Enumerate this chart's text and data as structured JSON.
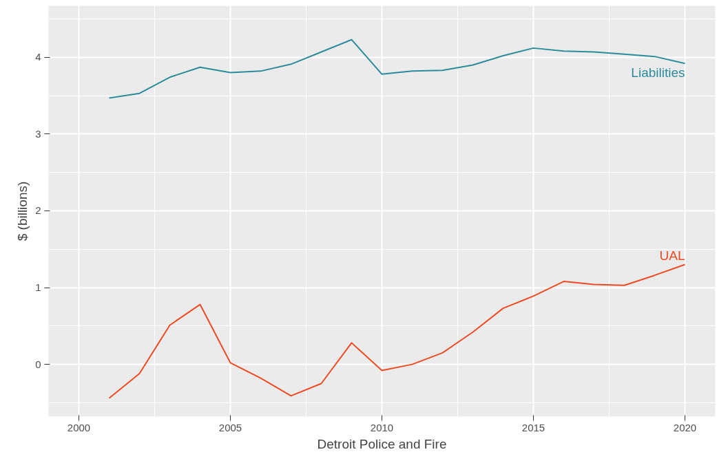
{
  "chart_data": {
    "type": "line",
    "xlabel": "Detroit Police and Fire",
    "ylabel": "$ (billions)",
    "x": [
      2001,
      2002,
      2003,
      2004,
      2005,
      2006,
      2007,
      2008,
      2009,
      2010,
      2011,
      2012,
      2013,
      2014,
      2015,
      2016,
      2017,
      2018,
      2019,
      2020
    ],
    "series": [
      {
        "name": "Liabilities",
        "color": "#2b8b9b",
        "values": [
          3.47,
          3.53,
          3.74,
          3.87,
          3.8,
          3.82,
          3.91,
          4.07,
          4.23,
          3.78,
          3.82,
          3.83,
          3.9,
          4.02,
          4.12,
          4.08,
          4.07,
          4.04,
          4.01,
          3.92
        ]
      },
      {
        "name": "UAL",
        "color": "#ee4a22",
        "values": [
          -0.44,
          -0.12,
          0.51,
          0.78,
          0.02,
          -0.18,
          -0.41,
          -0.25,
          0.28,
          -0.08,
          0.0,
          0.15,
          0.42,
          0.73,
          0.89,
          1.08,
          1.04,
          1.03,
          1.16,
          1.3
        ]
      }
    ],
    "xlim": [
      1999,
      2021
    ],
    "ylim": [
      -0.68,
      4.67
    ],
    "xticks": [
      2000,
      2005,
      2010,
      2015,
      2020
    ],
    "yticks": [
      0,
      1,
      2,
      3,
      4
    ],
    "grid": true,
    "legend": false,
    "line_style": "solid"
  }
}
